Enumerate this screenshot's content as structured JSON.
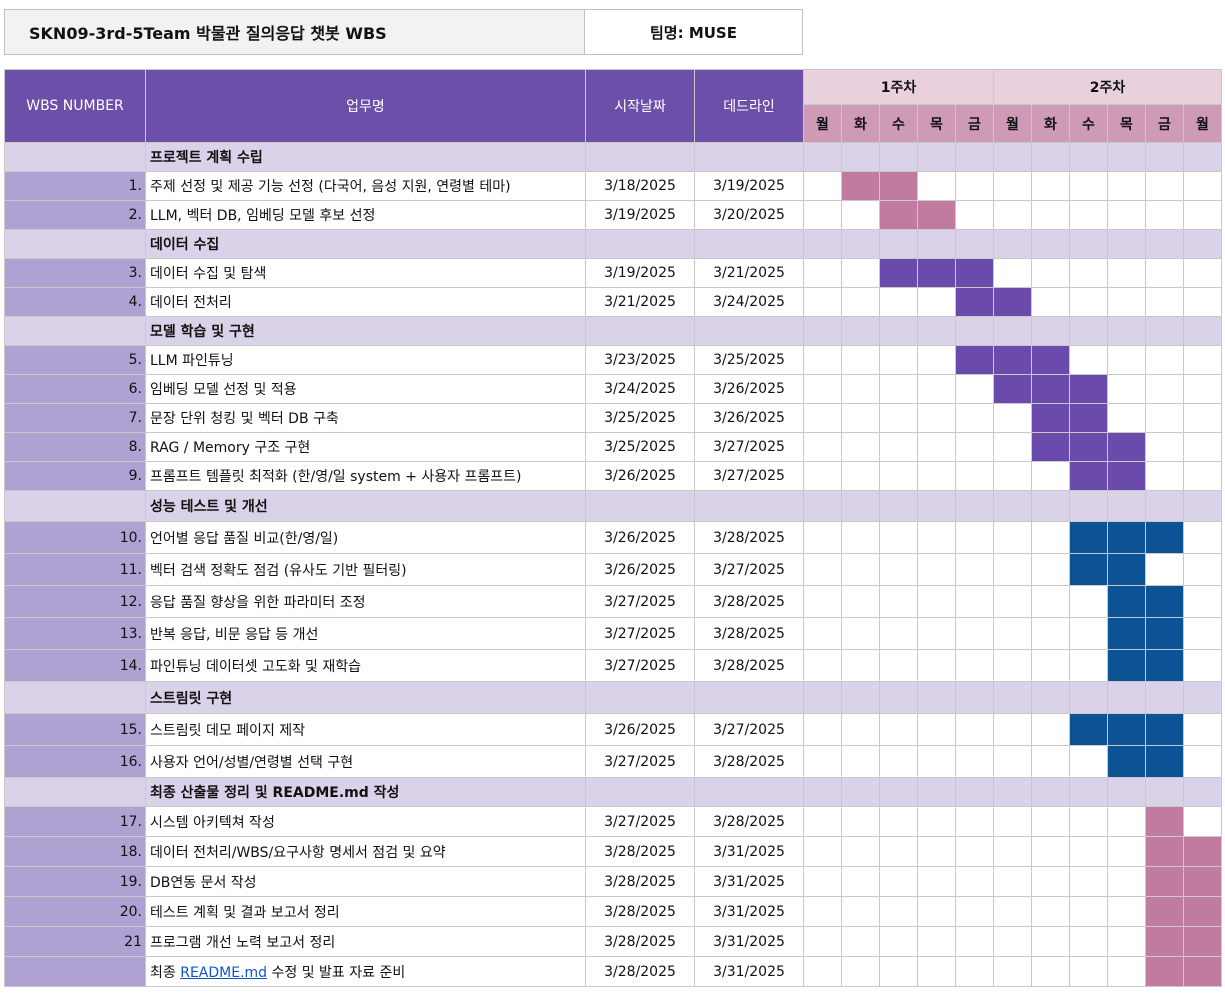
{
  "header": {
    "title": "SKN09-3rd-5Team   박물관 질의응답 챗봇  WBS",
    "team": "팀명: MUSE"
  },
  "columns": {
    "wbs_number": "WBS NUMBER",
    "task": "업무명",
    "start": "시작날짜",
    "deadline": "데드라인",
    "week1": "1주차",
    "week2": "2주차",
    "days": [
      "월",
      "화",
      "수",
      "목",
      "금",
      "월",
      "화",
      "수",
      "목",
      "금",
      "월"
    ]
  },
  "colors": {
    "pink": "#c27ba0",
    "purple": "#6a4aaa",
    "blue": "#0b5394"
  },
  "rows": [
    {
      "category": true,
      "task": "프로젝트 계획 수립"
    },
    {
      "num": "1.",
      "task": "주제 선정 및 제공 기능 선정 (다국어, 음성 지원,  연령별 테마)",
      "start": "3/18/2025",
      "end": "3/19/2025",
      "bar": [
        1,
        2
      ],
      "color": "pink"
    },
    {
      "num": "2.",
      "task": "LLM, 벡터 DB, 임베딩 모델 후보 선정",
      "start": "3/19/2025",
      "end": "3/20/2025",
      "bar": [
        2,
        3
      ],
      "color": "pink"
    },
    {
      "category": true,
      "task": "데이터 수집"
    },
    {
      "num": "3.",
      "task": "데이터 수집 및 탐색",
      "start": "3/19/2025",
      "end": "3/21/2025",
      "bar": [
        2,
        4
      ],
      "color": "purple"
    },
    {
      "num": "4.",
      "task": "데이터 전처리",
      "start": "3/21/2025",
      "end": "3/24/2025",
      "bar": [
        4,
        5
      ],
      "color": "purple"
    },
    {
      "category": true,
      "task": "모델 학습 및 구현"
    },
    {
      "num": "5.",
      "task": "LLM 파인튜닝",
      "start": "3/23/2025",
      "end": "3/25/2025",
      "bar": [
        4,
        6
      ],
      "color": "purple"
    },
    {
      "num": "6.",
      "task": "임베딩 모델 선정 및 적용",
      "start": "3/24/2025",
      "end": "3/26/2025",
      "bar": [
        5,
        7
      ],
      "color": "purple"
    },
    {
      "num": "7.",
      "task": "문장 단위 청킹 및 벡터 DB 구축",
      "start": "3/25/2025",
      "end": "3/26/2025",
      "bar": [
        6,
        7
      ],
      "color": "purple"
    },
    {
      "num": "8.",
      "task": "RAG / Memory 구조 구현",
      "start": "3/25/2025",
      "end": "3/27/2025",
      "bar": [
        6,
        8
      ],
      "color": "purple"
    },
    {
      "num": "9.",
      "task": "프롬프트 템플릿 최적화 (한/영/일 system + 사용자 프롬프트)",
      "start": "3/26/2025",
      "end": "3/27/2025",
      "bar": [
        7,
        8
      ],
      "color": "purple"
    },
    {
      "category": true,
      "task": "성능 테스트 및  개선"
    },
    {
      "num": "10.",
      "task": "언어별 응답 품질 비교(한/영/일)",
      "start": "3/26/2025",
      "end": "3/28/2025",
      "bar": [
        7,
        9
      ],
      "color": "blue"
    },
    {
      "num": "11.",
      "task": "벡터 검색 정확도 점검 (유사도 기반 필터링)",
      "start": "3/26/2025",
      "end": "3/27/2025",
      "bar": [
        7,
        8
      ],
      "color": "blue"
    },
    {
      "num": "12.",
      "task": "응답 품질 향상을 위한 파라미터 조정",
      "start": "3/27/2025",
      "end": "3/28/2025",
      "bar": [
        8,
        9
      ],
      "color": "blue"
    },
    {
      "num": "13.",
      "task": "반복 응답, 비문 응답 등 개선",
      "start": "3/27/2025",
      "end": "3/28/2025",
      "bar": [
        8,
        9
      ],
      "color": "blue"
    },
    {
      "num": "14.",
      "task": "파인튜닝 데이터셋 고도화 및 재학습",
      "start": "3/27/2025",
      "end": "3/28/2025",
      "bar": [
        8,
        9
      ],
      "color": "blue"
    },
    {
      "category": true,
      "task": "스트림릿 구현"
    },
    {
      "num": "15.",
      "task": "스트림릿 데모 페이지 제작",
      "start": "3/26/2025",
      "end": "3/27/2025",
      "bar": [
        7,
        9
      ],
      "color": "blue"
    },
    {
      "num": "16.",
      "task": "사용자 언어/성별/연령별 선택 구현",
      "start": "3/27/2025",
      "end": "3/28/2025",
      "bar": [
        8,
        9
      ],
      "color": "blue"
    },
    {
      "category": true,
      "task": "최종 산출물 정리  및 README.md  작성"
    },
    {
      "num": "17.",
      "task": "시스템 아키텍쳐 작성",
      "start": "3/27/2025",
      "end": "3/28/2025",
      "bar": [
        9,
        9
      ],
      "color": "pink"
    },
    {
      "num": "18.",
      "task": "데이터 전처리/WBS/요구사항 명세서 점검 및 요약",
      "start": "3/28/2025",
      "end": "3/31/2025",
      "bar": [
        9,
        10
      ],
      "color": "pink"
    },
    {
      "num": "19.",
      "task": "DB연동 문서 작성",
      "start": "3/28/2025",
      "end": "3/31/2025",
      "bar": [
        9,
        10
      ],
      "color": "pink"
    },
    {
      "num": "20.",
      "task": "테스트 계획 및 결과 보고서 정리",
      "start": "3/28/2025",
      "end": "3/31/2025",
      "bar": [
        9,
        10
      ],
      "color": "pink"
    },
    {
      "num": "21",
      "task": "프로그램 개선 노력 보고서 정리",
      "start": "3/28/2025",
      "end": "3/31/2025",
      "bar": [
        9,
        10
      ],
      "color": "pink"
    },
    {
      "num": "",
      "task_prefix": "최종 ",
      "task_link": "README.md",
      "task_suffix": " 수정 및 발표 자료 준비",
      "start": "3/28/2025",
      "end": "3/31/2025",
      "bar": [
        9,
        10
      ],
      "color": "pink"
    }
  ]
}
